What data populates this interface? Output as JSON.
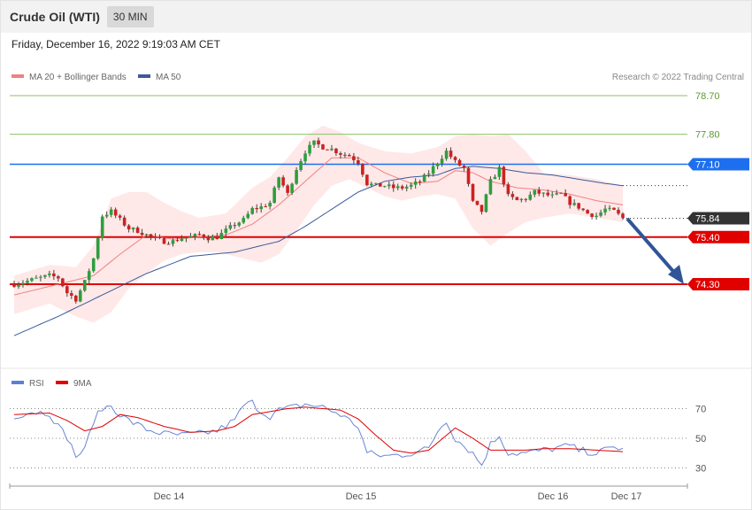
{
  "header": {
    "title": "Crude Oil (WTI)",
    "timeframe": "30 MIN"
  },
  "datetime": "Friday, December 16, 2022 9:19:03 AM CET",
  "legend": {
    "ma20": "MA 20 + Bollinger Bands",
    "ma50": "MA 50",
    "copyright": "Research © 2022 Trading Central"
  },
  "rsi_legend": {
    "rsi": "RSI",
    "ma9": "9MA"
  },
  "colors": {
    "ma20": "#f08080",
    "ma50": "#3a5a9a",
    "resistance_blue": "#1e6ff0",
    "level_red": "#e00000",
    "target_green": "#8cc265",
    "bullish": "#2e9e3e",
    "bearish": "#cc2222",
    "arrow": "#2f5597"
  },
  "chart_data": [
    {
      "type": "candlestick",
      "title": "",
      "ylim": [
        73.3,
        79.05
      ],
      "x_ticks": [
        "Dec 14",
        "Dec 15",
        "Dec 16",
        "Dec 17"
      ],
      "levels": [
        {
          "value": 78.7,
          "label": "78.70",
          "kind": "target"
        },
        {
          "value": 77.8,
          "label": "77.80",
          "kind": "target"
        },
        {
          "value": 77.1,
          "label": "77.10",
          "kind": "pivot"
        },
        {
          "value": 75.84,
          "label": "75.84",
          "kind": "last"
        },
        {
          "value": 75.4,
          "label": "75.40",
          "kind": "support"
        },
        {
          "value": 74.3,
          "label": "74.30",
          "kind": "support"
        }
      ],
      "anchors": [
        [
          0,
          74.3
        ],
        [
          6,
          74.45
        ],
        [
          8,
          74.5
        ],
        [
          10,
          74.45
        ],
        [
          12,
          74.1
        ],
        [
          14,
          73.95
        ],
        [
          16,
          74.35
        ],
        [
          18,
          74.9
        ],
        [
          20,
          75.9
        ],
        [
          22,
          76.0
        ],
        [
          24,
          75.8
        ],
        [
          26,
          75.6
        ],
        [
          28,
          75.55
        ],
        [
          30,
          75.45
        ],
        [
          32,
          75.35
        ],
        [
          34,
          75.3
        ],
        [
          36,
          75.3
        ],
        [
          38,
          75.38
        ],
        [
          40,
          75.4
        ],
        [
          42,
          75.45
        ],
        [
          44,
          75.38
        ],
        [
          46,
          75.4
        ],
        [
          48,
          75.55
        ],
        [
          50,
          75.7
        ],
        [
          52,
          75.8
        ],
        [
          54,
          76.05
        ],
        [
          56,
          76.1
        ],
        [
          58,
          76.2
        ],
        [
          60,
          76.8
        ],
        [
          62,
          76.4
        ],
        [
          64,
          77.0
        ],
        [
          66,
          77.4
        ],
        [
          68,
          77.6
        ],
        [
          70,
          77.5
        ],
        [
          72,
          77.45
        ],
        [
          74,
          77.35
        ],
        [
          76,
          77.3
        ],
        [
          78,
          77.15
        ],
        [
          80,
          76.65
        ],
        [
          82,
          76.6
        ],
        [
          84,
          76.6
        ],
        [
          86,
          76.55
        ],
        [
          88,
          76.55
        ],
        [
          90,
          76.6
        ],
        [
          92,
          76.7
        ],
        [
          94,
          76.9
        ],
        [
          96,
          77.15
        ],
        [
          98,
          77.4
        ],
        [
          100,
          77.15
        ],
        [
          102,
          77.0
        ],
        [
          104,
          76.2
        ],
        [
          106,
          76.0
        ],
        [
          108,
          76.7
        ],
        [
          110,
          77.0
        ],
        [
          112,
          76.35
        ],
        [
          114,
          76.25
        ],
        [
          116,
          76.3
        ],
        [
          118,
          76.45
        ],
        [
          120,
          76.4
        ],
        [
          122,
          76.35
        ],
        [
          124,
          76.4
        ],
        [
          126,
          76.2
        ],
        [
          128,
          76.1
        ],
        [
          130,
          75.95
        ],
        [
          132,
          75.9
        ],
        [
          134,
          76.05
        ],
        [
          136,
          76.0
        ],
        [
          138,
          75.84
        ]
      ],
      "ma20": [
        [
          0,
          74.05
        ],
        [
          10,
          74.3
        ],
        [
          18,
          74.5
        ],
        [
          24,
          75.0
        ],
        [
          30,
          75.45
        ],
        [
          36,
          75.35
        ],
        [
          42,
          75.4
        ],
        [
          48,
          75.45
        ],
        [
          54,
          75.7
        ],
        [
          60,
          76.15
        ],
        [
          66,
          76.7
        ],
        [
          72,
          77.25
        ],
        [
          78,
          77.25
        ],
        [
          84,
          76.9
        ],
        [
          90,
          76.65
        ],
        [
          96,
          76.7
        ],
        [
          100,
          76.95
        ],
        [
          104,
          76.9
        ],
        [
          108,
          76.7
        ],
        [
          114,
          76.55
        ],
        [
          120,
          76.5
        ],
        [
          126,
          76.4
        ],
        [
          132,
          76.25
        ],
        [
          138,
          76.15
        ]
      ],
      "bb_upper": [
        [
          0,
          74.5
        ],
        [
          8,
          74.75
        ],
        [
          14,
          74.7
        ],
        [
          18,
          75.2
        ],
        [
          22,
          76.3
        ],
        [
          26,
          76.45
        ],
        [
          30,
          76.45
        ],
        [
          34,
          76.2
        ],
        [
          38,
          76.0
        ],
        [
          42,
          75.85
        ],
        [
          48,
          75.95
        ],
        [
          54,
          76.55
        ],
        [
          58,
          76.8
        ],
        [
          62,
          77.25
        ],
        [
          66,
          77.75
        ],
        [
          70,
          78.0
        ],
        [
          74,
          77.85
        ],
        [
          78,
          77.6
        ],
        [
          84,
          77.4
        ],
        [
          90,
          77.35
        ],
        [
          96,
          77.5
        ],
        [
          100,
          77.75
        ],
        [
          104,
          77.8
        ],
        [
          108,
          77.75
        ],
        [
          112,
          77.8
        ],
        [
          116,
          77.4
        ],
        [
          120,
          76.9
        ],
        [
          126,
          76.85
        ],
        [
          132,
          76.75
        ],
        [
          138,
          76.6
        ]
      ],
      "bb_lower": [
        [
          0,
          73.6
        ],
        [
          8,
          73.85
        ],
        [
          14,
          73.55
        ],
        [
          18,
          73.4
        ],
        [
          22,
          73.65
        ],
        [
          26,
          74.2
        ],
        [
          30,
          74.55
        ],
        [
          34,
          74.85
        ],
        [
          38,
          75.0
        ],
        [
          42,
          75.05
        ],
        [
          46,
          75.05
        ],
        [
          52,
          74.9
        ],
        [
          56,
          74.8
        ],
        [
          60,
          75.0
        ],
        [
          64,
          75.55
        ],
        [
          68,
          76.15
        ],
        [
          72,
          76.6
        ],
        [
          76,
          76.75
        ],
        [
          80,
          76.55
        ],
        [
          84,
          76.35
        ],
        [
          88,
          76.25
        ],
        [
          92,
          76.35
        ],
        [
          96,
          76.4
        ],
        [
          100,
          76.3
        ],
        [
          104,
          75.6
        ],
        [
          108,
          75.2
        ],
        [
          112,
          75.5
        ],
        [
          116,
          75.75
        ],
        [
          120,
          75.85
        ],
        [
          126,
          75.95
        ],
        [
          132,
          75.85
        ],
        [
          138,
          75.75
        ]
      ],
      "ma50": [
        [
          0,
          73.1
        ],
        [
          10,
          73.55
        ],
        [
          20,
          74.05
        ],
        [
          30,
          74.55
        ],
        [
          40,
          74.95
        ],
        [
          50,
          75.05
        ],
        [
          60,
          75.3
        ],
        [
          66,
          75.65
        ],
        [
          72,
          76.05
        ],
        [
          78,
          76.45
        ],
        [
          84,
          76.7
        ],
        [
          90,
          76.8
        ],
        [
          96,
          76.85
        ],
        [
          100,
          77.0
        ],
        [
          104,
          77.05
        ],
        [
          110,
          77.0
        ],
        [
          116,
          76.9
        ],
        [
          122,
          76.85
        ],
        [
          128,
          76.75
        ],
        [
          134,
          76.65
        ],
        [
          138,
          76.6
        ]
      ]
    },
    {
      "type": "line",
      "title": "",
      "ylim": [
        20,
        80
      ],
      "y_ticks": [
        70,
        50,
        30
      ],
      "series": [
        {
          "name": "RSI",
          "points": [
            [
              0,
              65
            ],
            [
              4,
              68
            ],
            [
              8,
              67
            ],
            [
              10,
              58
            ],
            [
              12,
              51
            ],
            [
              14,
              38
            ],
            [
              16,
              42
            ],
            [
              18,
              62
            ],
            [
              20,
              70
            ],
            [
              22,
              72
            ],
            [
              24,
              66
            ],
            [
              26,
              62
            ],
            [
              28,
              59
            ],
            [
              30,
              56
            ],
            [
              34,
              53
            ],
            [
              38,
              52
            ],
            [
              42,
              53
            ],
            [
              46,
              55
            ],
            [
              50,
              62
            ],
            [
              52,
              72
            ],
            [
              54,
              74
            ],
            [
              56,
              68
            ],
            [
              58,
              65
            ],
            [
              60,
              69
            ],
            [
              62,
              70
            ],
            [
              66,
              73
            ],
            [
              70,
              71
            ],
            [
              74,
              66
            ],
            [
              76,
              62
            ],
            [
              78,
              58
            ],
            [
              80,
              40
            ],
            [
              84,
              38
            ],
            [
              88,
              39
            ],
            [
              90,
              40
            ],
            [
              94,
              43
            ],
            [
              96,
              55
            ],
            [
              98,
              62
            ],
            [
              100,
              50
            ],
            [
              104,
              40
            ],
            [
              106,
              32
            ],
            [
              108,
              46
            ],
            [
              110,
              52
            ],
            [
              112,
              40
            ],
            [
              116,
              40
            ],
            [
              120,
              42
            ],
            [
              124,
              44
            ],
            [
              126,
              45
            ],
            [
              128,
              42
            ],
            [
              132,
              40
            ],
            [
              136,
              44
            ],
            [
              138,
              43
            ]
          ]
        },
        {
          "name": "9MA",
          "points": [
            [
              0,
              66
            ],
            [
              8,
              67
            ],
            [
              12,
              62
            ],
            [
              16,
              55
            ],
            [
              20,
              58
            ],
            [
              24,
              66
            ],
            [
              28,
              64
            ],
            [
              34,
              58
            ],
            [
              40,
              54
            ],
            [
              46,
              55
            ],
            [
              50,
              58
            ],
            [
              54,
              66
            ],
            [
              58,
              68
            ],
            [
              62,
              70
            ],
            [
              66,
              71
            ],
            [
              70,
              70
            ],
            [
              74,
              69
            ],
            [
              78,
              63
            ],
            [
              82,
              52
            ],
            [
              86,
              42
            ],
            [
              90,
              40
            ],
            [
              94,
              42
            ],
            [
              98,
              52
            ],
            [
              100,
              57
            ],
            [
              104,
              50
            ],
            [
              108,
              42
            ],
            [
              112,
              42
            ],
            [
              116,
              42
            ],
            [
              120,
              43
            ],
            [
              126,
              43
            ],
            [
              132,
              42
            ],
            [
              138,
              41
            ]
          ]
        }
      ]
    }
  ]
}
